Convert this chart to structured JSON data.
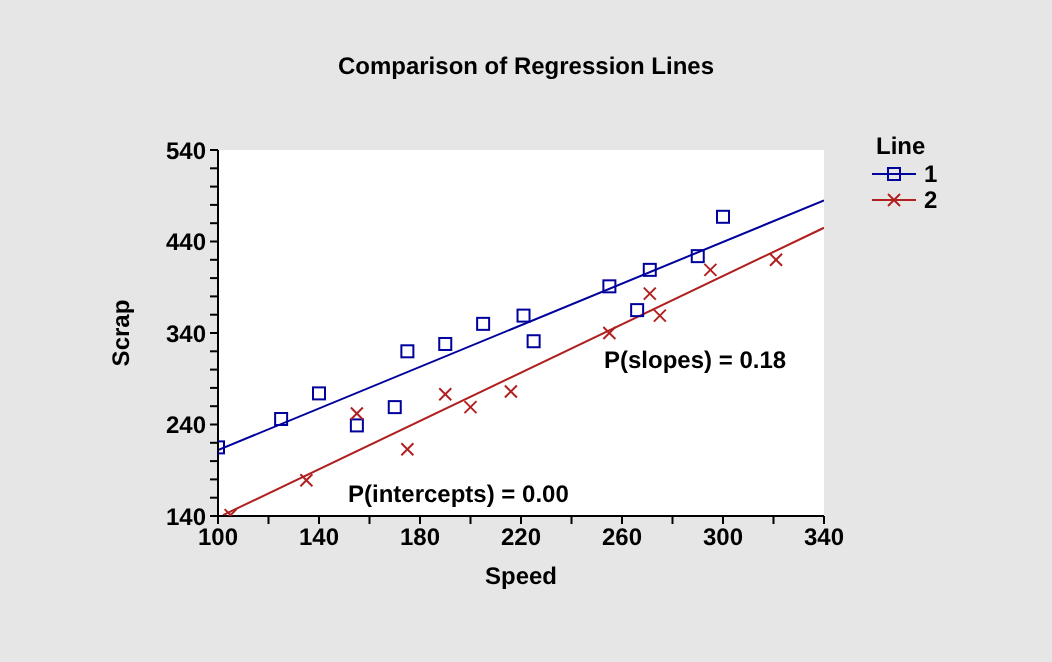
{
  "chart_data": {
    "type": "scatter",
    "title": "Comparison of Regression Lines",
    "xlabel": "Speed",
    "ylabel": "Scrap",
    "legend_title": "Line",
    "legend": "top right",
    "xlim": [
      100,
      340
    ],
    "ylim": [
      140,
      540
    ],
    "xticks": [
      100,
      {
        "value": 120,
        "label": null
      },
      140,
      {
        "value": 160,
        "label": null
      },
      180,
      {
        "value": 200,
        "label": null
      },
      220,
      {
        "value": 240,
        "label": null
      },
      260,
      {
        "value": 280,
        "label": null
      },
      300,
      {
        "value": 320,
        "label": null
      },
      340
    ],
    "yticks": [
      140,
      {
        "value": 160,
        "label": null
      },
      {
        "value": 180,
        "label": null
      },
      {
        "value": 200,
        "label": null
      },
      {
        "value": 220,
        "label": null
      },
      240,
      {
        "value": 260,
        "label": null
      },
      {
        "value": 280,
        "label": null
      },
      {
        "value": 300,
        "label": null
      },
      {
        "value": 320,
        "label": null
      },
      340,
      {
        "value": 360,
        "label": null
      },
      {
        "value": 380,
        "label": null
      },
      {
        "value": 400,
        "label": null
      },
      {
        "value": 420,
        "label": null
      },
      440,
      {
        "value": 460,
        "label": null
      },
      {
        "value": 480,
        "label": null
      },
      {
        "value": 500,
        "label": null
      },
      {
        "value": 520,
        "label": null
      },
      540
    ],
    "grid": false,
    "annotations": [
      "P(slopes) = 0.18",
      "P(intercepts) = 0.00"
    ],
    "series": [
      {
        "name": "1",
        "marker": "square",
        "color": "#00009c",
        "x": [
          100,
          125,
          140,
          155,
          170,
          175,
          190,
          205,
          221,
          225,
          255,
          266,
          271,
          290,
          300
        ],
        "values": [
          215,
          246,
          274,
          239,
          259,
          320,
          328,
          350,
          359,
          331,
          391,
          365,
          409,
          424,
          467
        ]
      },
      {
        "name": "2",
        "marker": "cross",
        "color": "#b02020",
        "x": [
          105,
          135,
          155,
          175,
          190,
          200,
          216,
          255,
          271,
          275,
          295,
          321
        ],
        "values": [
          141,
          179,
          252,
          213,
          273,
          259,
          276,
          340,
          383,
          359,
          409,
          420
        ]
      },
      {
        "type": "line",
        "color": "#00009c",
        "x": [
          100,
          340
        ],
        "values": [
          212,
          485
        ]
      },
      {
        "type": "line",
        "color": "#b02020",
        "x": [
          102,
          340
        ],
        "values": [
          141,
          455
        ]
      }
    ]
  }
}
